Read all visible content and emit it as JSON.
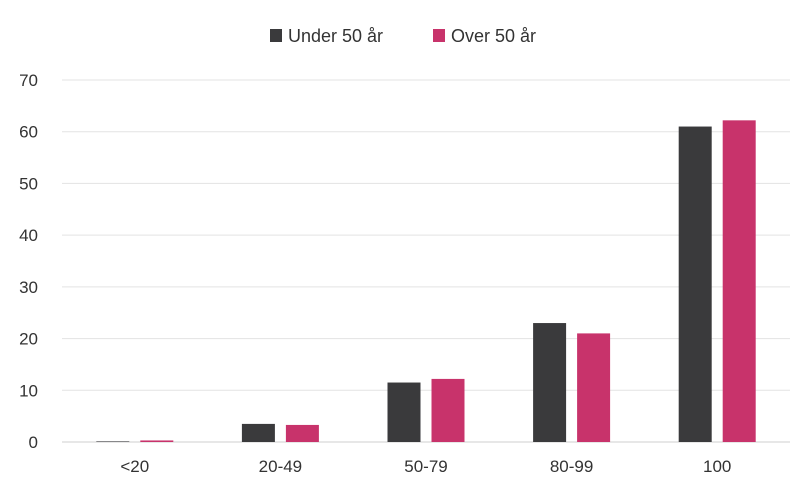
{
  "chart_data": {
    "type": "bar",
    "categories": [
      "<20",
      "20-49",
      "50-79",
      "80-99",
      "100"
    ],
    "series": [
      {
        "name": "Under 50 år",
        "color": "#3a3a3c",
        "values": [
          0,
          3.5,
          11.5,
          23,
          61
        ]
      },
      {
        "name": "Over 50 år",
        "color": "#c8336b",
        "values": [
          0.3,
          3.3,
          12.2,
          21,
          62.2
        ]
      }
    ],
    "yticks": [
      "0",
      "10",
      "20",
      "30",
      "40",
      "50",
      "60",
      "70"
    ],
    "ylim": [
      0,
      70
    ],
    "grid": true,
    "legend": "top-center",
    "title": "",
    "xlabel": "",
    "ylabel": ""
  }
}
